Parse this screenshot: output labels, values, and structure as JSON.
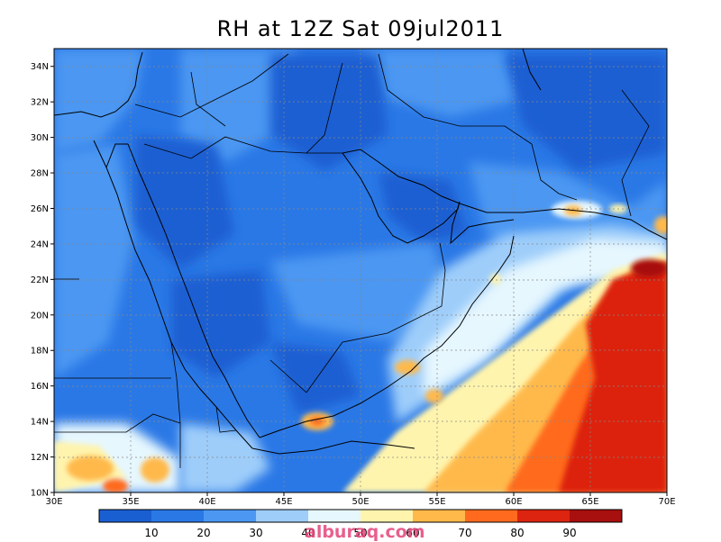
{
  "title": "RH at 12Z Sat 09jul2011",
  "watermark": "alburaq.com",
  "lon_ticks": [
    "30E",
    "35E",
    "40E",
    "45E",
    "50E",
    "55E",
    "60E",
    "65E",
    "70E"
  ],
  "lat_ticks": [
    "10N",
    "12N",
    "14N",
    "16N",
    "18N",
    "20N",
    "22N",
    "24N",
    "26N",
    "28N",
    "30N",
    "32N",
    "34N"
  ],
  "colorbar": {
    "labels": [
      "10",
      "20",
      "30",
      "40",
      "50",
      "60",
      "70",
      "80",
      "90"
    ],
    "colors": [
      "#1a5fd2",
      "#2a78e6",
      "#4b97f2",
      "#9ecdfa",
      "#e6f7fe",
      "#fff4ad",
      "#ffb94b",
      "#ff6a1e",
      "#dc2410",
      "#a80f0f"
    ]
  },
  "map": {
    "domain": {
      "lon": [
        30,
        70
      ],
      "lat": [
        10,
        35
      ]
    },
    "field": "relative humidity",
    "units": "%"
  }
}
